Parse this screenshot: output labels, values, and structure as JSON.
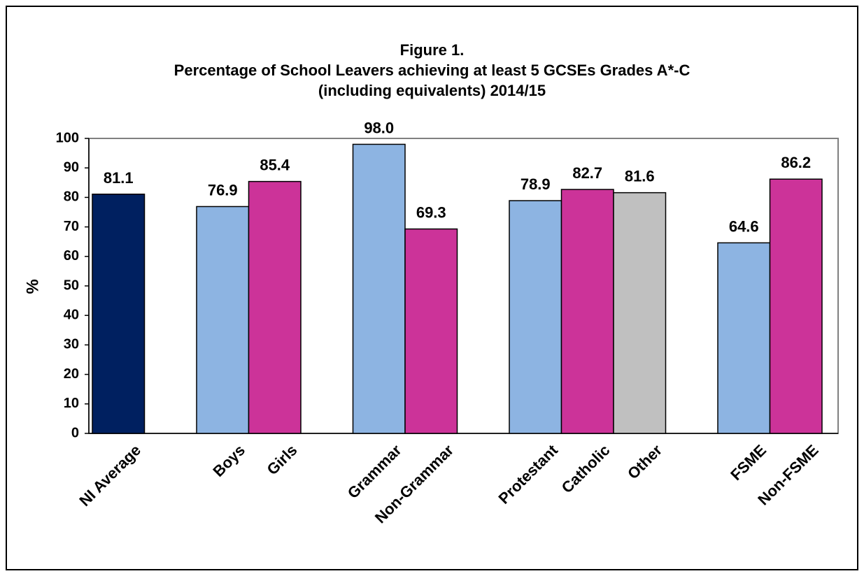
{
  "chart_data": {
    "type": "bar",
    "title_lines": [
      "Figure 1.",
      "Percentage of School Leavers achieving at least 5 GCSEs Grades A*-C",
      "(including equivalents) 2014/15"
    ],
    "ylabel": "%",
    "xlabel": "",
    "ylim": [
      0,
      100
    ],
    "yticks": [
      0,
      10,
      20,
      30,
      40,
      50,
      60,
      70,
      80,
      90,
      100
    ],
    "grid": false,
    "legend": "none",
    "groups": [
      {
        "bars": [
          {
            "label": "NI Average",
            "value": 81.1,
            "color": "#002060"
          }
        ]
      },
      {
        "bars": [
          {
            "label": "Boys",
            "value": 76.9,
            "color": "#8DB4E2"
          },
          {
            "label": "Girls",
            "value": 85.4,
            "color": "#CC3399"
          }
        ]
      },
      {
        "bars": [
          {
            "label": "Grammar",
            "value": 98.0,
            "color": "#8DB4E2"
          },
          {
            "label": "Non-Grammar",
            "value": 69.3,
            "color": "#CC3399"
          }
        ]
      },
      {
        "bars": [
          {
            "label": "Protestant",
            "value": 78.9,
            "color": "#8DB4E2"
          },
          {
            "label": "Catholic",
            "value": 82.7,
            "color": "#CC3399"
          },
          {
            "label": "Other",
            "value": 81.6,
            "color": "#C0C0C0"
          }
        ]
      },
      {
        "bars": [
          {
            "label": "FSME",
            "value": 64.6,
            "color": "#8DB4E2"
          },
          {
            "label": "Non-FSME",
            "value": 86.2,
            "color": "#CC3399"
          }
        ]
      }
    ],
    "value_labels": [
      "81.1",
      "76.9",
      "85.4",
      "98.0",
      "69.3",
      "78.9",
      "82.7",
      "81.6",
      "64.6",
      "86.2"
    ]
  }
}
